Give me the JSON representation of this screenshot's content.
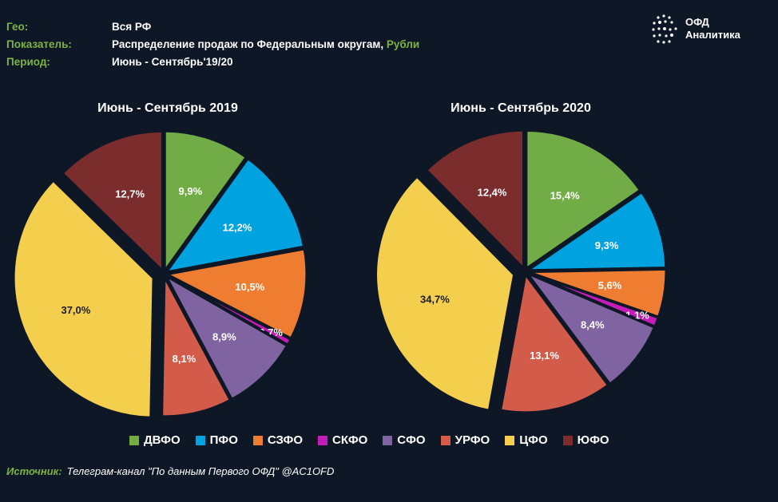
{
  "meta": {
    "geo_label": "Гео:",
    "geo_value": "Вся РФ",
    "indicator_label": "Показатель:",
    "indicator_value": "Распределение продаж по Федеральным округам,",
    "indicator_unit": "Рубли",
    "period_label": "Период:",
    "period_value": "Июнь - Сентябрь'19/20"
  },
  "logo": {
    "line1": "ОФД",
    "line2": "Аналитика"
  },
  "colors": {
    "background": "#0e1726",
    "accent_green": "#7cb342",
    "ДВФО": "#72ac46",
    "ПФО": "#00a3e0",
    "СЗФО": "#ee7d31",
    "СКФО": "#c51cb9",
    "СФО": "#8064a2",
    "УРФО": "#d35b4a",
    "ЦФО": "#f4cf4e",
    "ЮФО": "#7b2c2c"
  },
  "chart_data": [
    {
      "type": "pie",
      "title": "Июнь - Сентябрь 2019",
      "categories": [
        "ДВФО",
        "ПФО",
        "СЗФО",
        "СКФО",
        "СФО",
        "УРФО",
        "ЦФО",
        "ЮФО"
      ],
      "values": [
        9.9,
        12.2,
        10.5,
        0.7,
        8.9,
        8.1,
        37.0,
        12.7
      ],
      "labels": [
        "9,9%",
        "12,2%",
        "10,5%",
        "0,7%",
        "8,9%",
        "8,1%",
        "37,0%",
        "12,7%"
      ],
      "unit": "%"
    },
    {
      "type": "pie",
      "title": "Июнь - Сентябрь 2020",
      "categories": [
        "ДВФО",
        "ПФО",
        "СЗФО",
        "СКФО",
        "СФО",
        "УРФО",
        "ЦФО",
        "ЮФО"
      ],
      "values": [
        15.4,
        9.3,
        5.6,
        1.1,
        8.4,
        13.1,
        34.7,
        12.4
      ],
      "labels": [
        "15,4%",
        "9,3%",
        "5,6%",
        "1,1%",
        "8,4%",
        "13,1%",
        "34,7%",
        "12,4%"
      ],
      "unit": "%"
    }
  ],
  "legend": [
    "ДВФО",
    "ПФО",
    "СЗФО",
    "СКФО",
    "СФО",
    "УРФО",
    "ЦФО",
    "ЮФО"
  ],
  "source": {
    "label": "Источник:",
    "text": "Телеграм-канал \"По данным Первого ОФД\" @AC1OFD"
  }
}
